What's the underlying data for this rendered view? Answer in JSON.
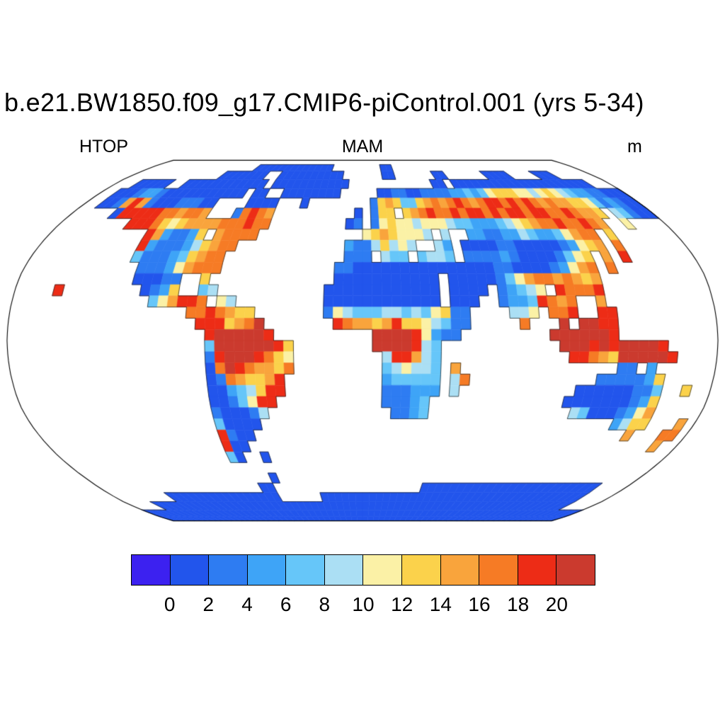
{
  "title": "b.e21.BW1850.f09_g17.CMIP6-piControl.001 (yrs 5-34)",
  "labels": {
    "variable": "HTOP",
    "season": "MAM",
    "units": "m"
  },
  "colorbar": {
    "tick_labels": [
      "0",
      "2",
      "4",
      "6",
      "8",
      "10",
      "12",
      "14",
      "16",
      "18",
      "20"
    ]
  },
  "chart_data": {
    "type": "heatmap",
    "title": "b.e21.BW1850.f09_g17.CMIP6-piControl.001 (yrs 5-34)",
    "variable": "HTOP",
    "season": "MAM",
    "units": "m",
    "projection": "robinson",
    "legend_position": "bottom",
    "levels": [
      0,
      2,
      4,
      6,
      8,
      10,
      12,
      14,
      16,
      18,
      20
    ],
    "colors": [
      "#3C21F0",
      "#2255EC",
      "#2E7CF2",
      "#3EA4F7",
      "#66C6F9",
      "#ABDFF4",
      "#FBF1A6",
      "#FBD24B",
      "#F9A43C",
      "#F67B25",
      "#ED2C16",
      "#CB3A2E"
    ],
    "no_data_color": "#FFFFFF",
    "grid": {
      "description": "Coarse 5-degree grid of HTOP (m) color bins. '.'=ocean/no data; hex char = color bin index: 0:<0, 1:0-2, 2:2-4, 3:4-6, 4:6-8, 5:8-10, 6:10-12, 7:12-14, 8:14-16, 9:16-18, a:18-20, b:>20",
      "lon_start": -180,
      "lon_step": 5,
      "lat_start": 90,
      "lat_step": -5,
      "cols": 72,
      "rows_count": 36,
      "rows": [
        "........................................................................",
        "..................1111111111111........11...............................",
        "..............1111111..1111111111......11......11......1111....111......",
        "...11111..111111111111.11111111111............11.11111111111111111111...",
        "..111233211111111111.11..11111111.....1122112222334346777665676543322111",
        "..1128a8211122211....1111...1........27874478989a989aa9a9a98988776423211",
        ".....1aaaaa998998...29a98..........1.277.789a99a9aa9a9aa9aa99a9887.54211",
        "........aaa97678888999a99.........12.2676656665443334567899a99a98..6....",
        "...........a832237.89999............67876665.5..332233543346899.7.......",
        "...........a3222357899............32257565..53.1111221111123678.9.......",
        "...........4222347899.............222.544.4554.22223211112467.8.a.......",
        "............222368999............2211111111111111122111123689.9.........",
        "............11122..7.............11111111111.1111124689989878...........",
        "....a........1237..45...........111111111111.1111.23456.a999a...........",
        "..............468aa9.65.........111111111111.111..2334a989..8...........",
        "..................99a9877.......265444554546722....556.99a..aa..........",
        "...................aaa789b.......a98878a7765422.....9...b.bbaa..........",
        "....................abbbbba..........bbbba6322.........bbbbbba..........",
        "....................4bbbbbba7........bbbba54............bbbababbbba.....",
        "....................2abbba976.........5aa854.............aa987bbbbba....",
        "....................19ba98879.........456554.8................22.3......",
        "....................1298778a..........344444.59.............2222237.....",
        "....................113457aa..........222333.5............111111224..7..",
        "....................11246aa...........22234..............1111111237.....",
        "....................211125.............2234...............541112368.....",
        "....................41111......................................3577...8.",
        "....................a211.........................................8...99.",
        "....................a11..............................................8..",
        "....................41..1...............................................",
        "........................................................................",
        "........................1...............................................",
        "......................11....................111111111111111111111111....",
        "........1111111111111111......11111111111111111111111111111111111111....",
        "....1111111111111111111111111111111111111111111111111111111111111111....",
        "111111111111111111111111111111111111111111111111111111111111111111111111",
        "111111111111111111111111111111111111111111111111111111111111111111111111"
      ]
    }
  }
}
